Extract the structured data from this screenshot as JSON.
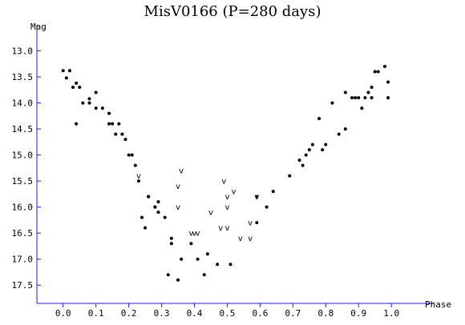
{
  "chart_data": {
    "type": "scatter",
    "title": "MisV0166 (P=280 days)",
    "xlabel": "Phase",
    "ylabel": "Mag",
    "xlim": [
      -0.08,
      1.09
    ],
    "ylim": [
      17.85,
      12.5
    ],
    "y_inverted": true,
    "grid": false,
    "x_ticks": [
      "0.0",
      "0.1",
      "0.2",
      "0.3",
      "0.4",
      "0.5",
      "0.6",
      "0.7",
      "0.8",
      "0.9",
      "1.0"
    ],
    "y_ticks": [
      "13.0",
      "13.5",
      "14.0",
      "14.5",
      "15.0",
      "15.5",
      "16.0",
      "16.5",
      "17.0",
      "17.5"
    ],
    "series": [
      {
        "marker": "dot",
        "points": [
          [
            0.0,
            13.38
          ],
          [
            0.01,
            13.52
          ],
          [
            0.02,
            13.38
          ],
          [
            0.03,
            13.7
          ],
          [
            0.04,
            14.4
          ],
          [
            0.04,
            13.62
          ],
          [
            0.05,
            13.7
          ],
          [
            0.06,
            14.0
          ],
          [
            0.08,
            13.92
          ],
          [
            0.08,
            14.0
          ],
          [
            0.1,
            14.1
          ],
          [
            0.1,
            13.8
          ],
          [
            0.12,
            14.1
          ],
          [
            0.14,
            14.2
          ],
          [
            0.14,
            14.4
          ],
          [
            0.15,
            14.4
          ],
          [
            0.16,
            14.6
          ],
          [
            0.17,
            14.4
          ],
          [
            0.18,
            14.6
          ],
          [
            0.19,
            14.7
          ],
          [
            0.2,
            15.0
          ],
          [
            0.21,
            15.0
          ],
          [
            0.22,
            15.2
          ],
          [
            0.23,
            15.5
          ],
          [
            0.24,
            16.2
          ],
          [
            0.25,
            16.4
          ],
          [
            0.26,
            15.8
          ],
          [
            0.26,
            15.8
          ],
          [
            0.28,
            16.0
          ],
          [
            0.28,
            16.0
          ],
          [
            0.29,
            16.1
          ],
          [
            0.29,
            15.9
          ],
          [
            0.31,
            16.2
          ],
          [
            0.32,
            17.3
          ],
          [
            0.33,
            16.6
          ],
          [
            0.33,
            16.7
          ],
          [
            0.35,
            17.4
          ],
          [
            0.36,
            17.0
          ],
          [
            0.39,
            16.7
          ],
          [
            0.41,
            17.0
          ],
          [
            0.43,
            17.3
          ],
          [
            0.44,
            16.9
          ],
          [
            0.47,
            17.1
          ],
          [
            0.51,
            17.1
          ],
          [
            0.59,
            15.8
          ],
          [
            0.59,
            16.3
          ],
          [
            0.62,
            16.0
          ],
          [
            0.64,
            15.7
          ],
          [
            0.69,
            15.4
          ],
          [
            0.72,
            15.1
          ],
          [
            0.73,
            15.2
          ],
          [
            0.74,
            15.0
          ],
          [
            0.75,
            14.9
          ],
          [
            0.76,
            14.8
          ],
          [
            0.78,
            14.3
          ],
          [
            0.79,
            14.9
          ],
          [
            0.8,
            14.8
          ],
          [
            0.82,
            14.0
          ],
          [
            0.84,
            14.6
          ],
          [
            0.86,
            14.5
          ],
          [
            0.86,
            13.8
          ],
          [
            0.88,
            13.9
          ],
          [
            0.89,
            13.9
          ],
          [
            0.9,
            13.9
          ],
          [
            0.91,
            14.1
          ],
          [
            0.92,
            13.9
          ],
          [
            0.93,
            13.8
          ],
          [
            0.94,
            13.9
          ],
          [
            0.94,
            13.7
          ],
          [
            0.95,
            13.4
          ],
          [
            0.96,
            13.4
          ],
          [
            0.98,
            13.3
          ],
          [
            0.99,
            13.6
          ],
          [
            0.99,
            13.9
          ]
        ]
      },
      {
        "marker": "v",
        "points": [
          [
            0.23,
            15.4
          ],
          [
            0.35,
            15.6
          ],
          [
            0.36,
            15.3
          ],
          [
            0.35,
            16.0
          ],
          [
            0.39,
            16.5
          ],
          [
            0.4,
            16.5
          ],
          [
            0.41,
            16.5
          ],
          [
            0.45,
            16.1
          ],
          [
            0.48,
            16.4
          ],
          [
            0.49,
            15.5
          ],
          [
            0.5,
            15.8
          ],
          [
            0.5,
            16.0
          ],
          [
            0.5,
            16.4
          ],
          [
            0.52,
            15.7
          ],
          [
            0.54,
            16.6
          ],
          [
            0.57,
            16.3
          ],
          [
            0.57,
            16.6
          ],
          [
            0.59,
            15.8
          ]
        ]
      }
    ]
  }
}
